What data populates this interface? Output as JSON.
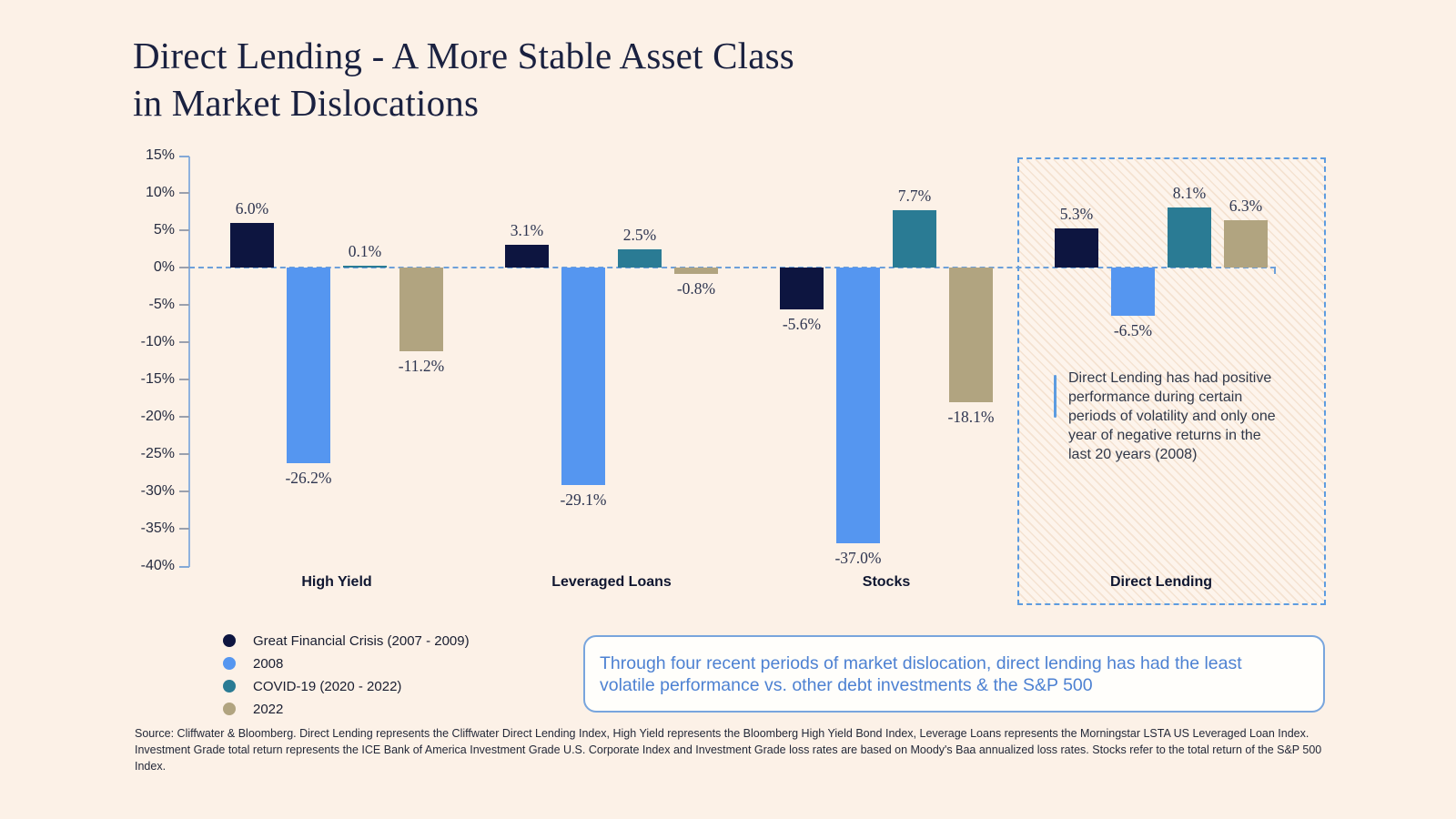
{
  "title": "Direct Lending - A More Stable Asset Class\nin Market Dislocations",
  "colors": {
    "background": "#fcf1e7",
    "navy": "#0d1540",
    "blue": "#5596f0",
    "teal": "#2a7b94",
    "tan": "#b1a480",
    "axis_blue": "#8fb2de",
    "dashed_blue": "#5d9ce0",
    "callout_text_blue": "#4d81d2"
  },
  "chart_data": {
    "type": "bar",
    "title": "Direct Lending - A More Stable Asset Class in Market Dislocations",
    "categories": [
      "High Yield",
      "Leveraged Loans",
      "Stocks",
      "Direct Lending"
    ],
    "series": [
      {
        "name": "Great Financial Crisis (2007 - 2009)",
        "color": "#0d1540",
        "values": [
          6.0,
          3.1,
          -5.6,
          5.3
        ],
        "labels": [
          "6.0%",
          "3.1%",
          "-5.6%",
          "5.3%"
        ]
      },
      {
        "name": "2008",
        "color": "#5596f0",
        "values": [
          -26.2,
          -29.1,
          -37.0,
          -6.5
        ],
        "labels": [
          "-26.2%",
          "-29.1%",
          "-37.0%",
          "-6.5%"
        ]
      },
      {
        "name": "COVID-19 (2020 - 2022)",
        "color": "#2a7b94",
        "values": [
          0.1,
          2.5,
          7.7,
          8.1
        ],
        "labels": [
          "0.1%",
          "2.5%",
          "7.7%",
          "8.1%"
        ]
      },
      {
        "name": "2022",
        "color": "#b1a480",
        "values": [
          -11.2,
          -0.8,
          -18.1,
          6.3
        ],
        "labels": [
          "-11.2%",
          "-0.8%",
          "-18.1%",
          "6.3%"
        ]
      }
    ],
    "ylim": [
      -40,
      15
    ],
    "ytick_step": 5,
    "ytick_labels": [
      "15%",
      "10%",
      "5%",
      "0%",
      "-5%",
      "-10%",
      "-15%",
      "-20%",
      "-25%",
      "-30%",
      "-35%",
      "-40%"
    ],
    "grid": false,
    "zero_line": "dashed",
    "legend_position": "bottom-left",
    "highlight": {
      "category": "Direct Lending",
      "style": "dashed-border hatched box"
    }
  },
  "annotation": {
    "text": "Direct Lending has had positive performance during certain periods of volatility and only one year of negative returns in the last 20 years (2008)"
  },
  "callout": {
    "text": "Through four recent periods of market dislocation, direct lending has had the least volatile performance vs. other debt investments & the S&P 500"
  },
  "source": {
    "line1": "Source: Cliffwater & Bloomberg. Direct Lending represents the Cliffwater Direct Lending Index, High Yield represents the Bloomberg High Yield Bond Index, Leverage Loans represents the Morningstar LSTA US Leveraged Loan Index.",
    "line2": "Investment Grade total return represents the ICE Bank of America Investment Grade U.S. Corporate Index and Investment Grade loss rates are based on Moody's Baa annualized loss rates. Stocks refer to the total return of the S&P 500 Index."
  }
}
